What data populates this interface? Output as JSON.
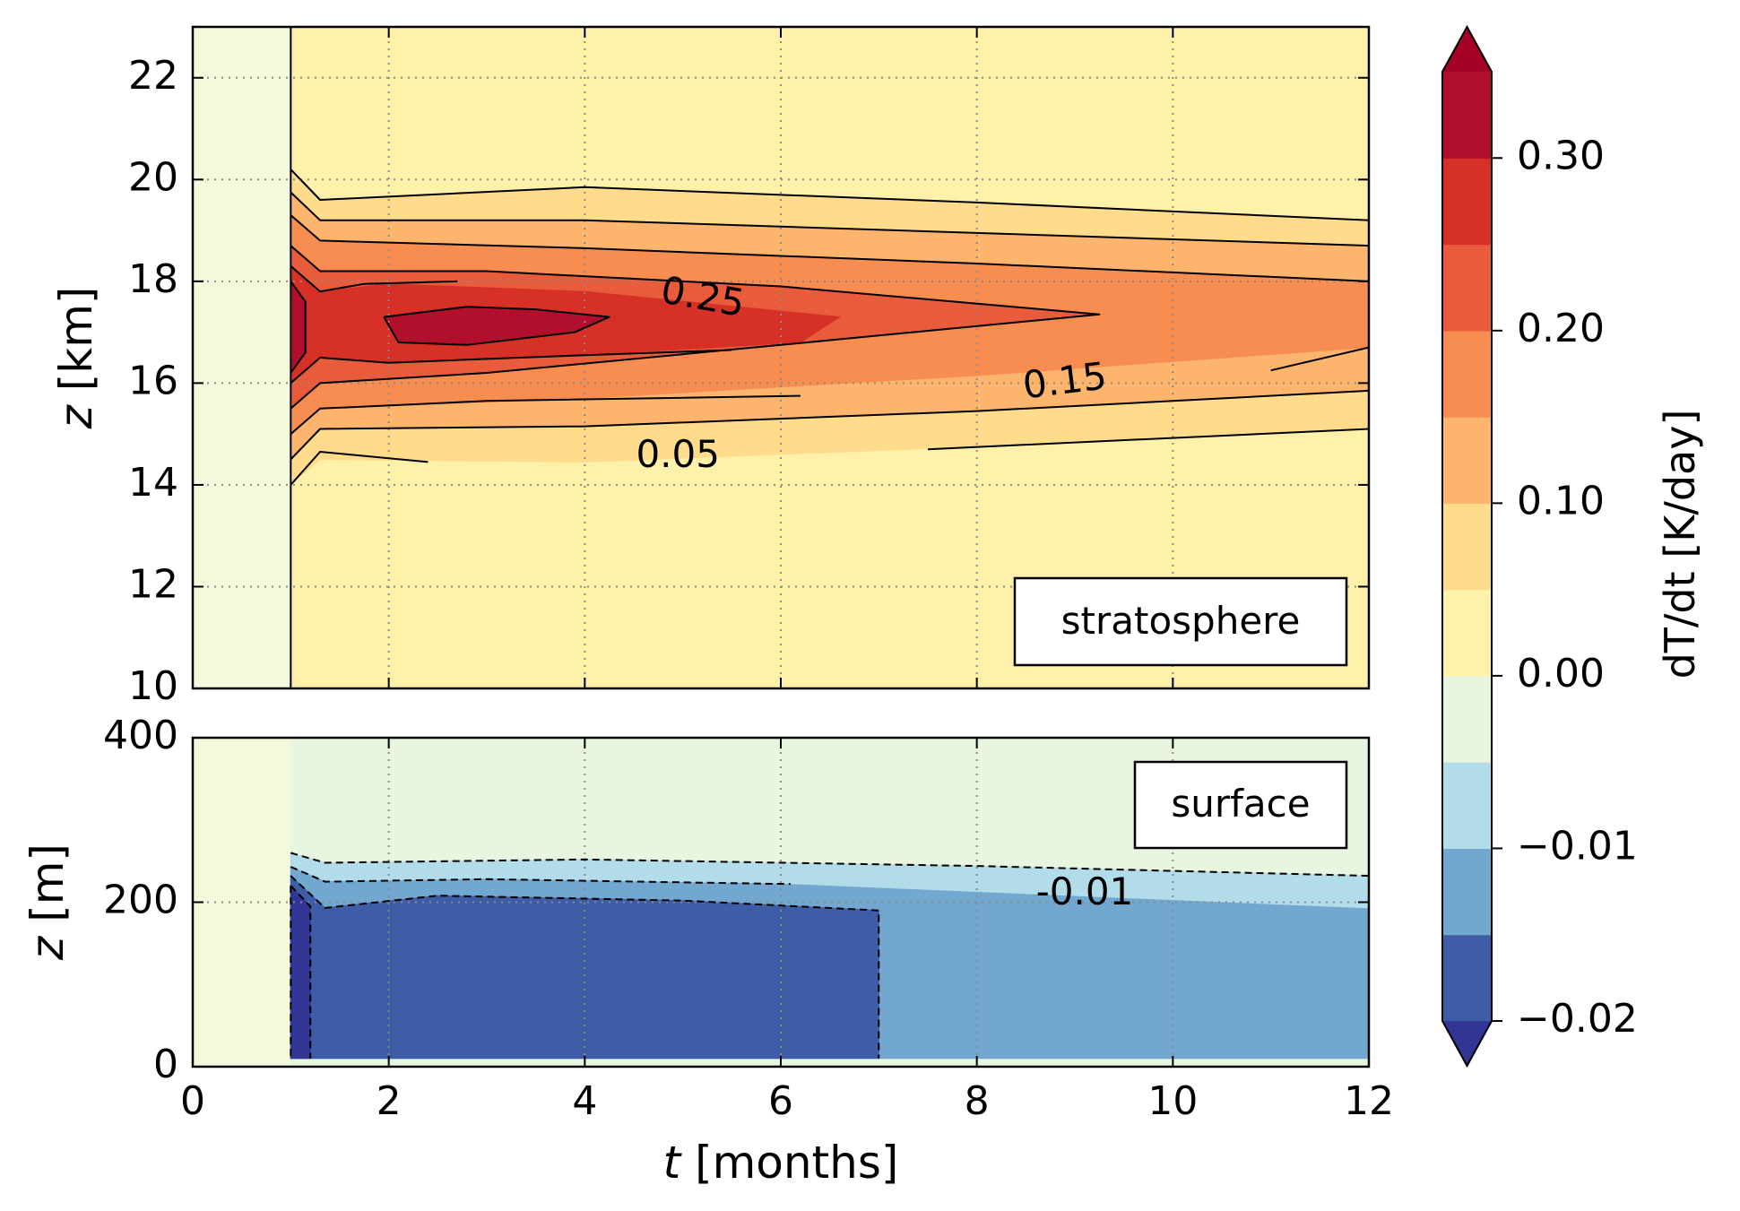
{
  "chart_data": {
    "type": "heatmap",
    "colorbar": {
      "label": "dT/dt [K/day]",
      "levels": [
        -0.02,
        -0.015,
        -0.01,
        -0.005,
        0.0,
        0.05,
        0.1,
        0.15,
        0.2,
        0.25,
        0.3,
        0.35
      ],
      "colors": [
        "#3f5ca7",
        "#72a8cf",
        "#b3dceb",
        "#e8f6e0",
        "#fff1aa",
        "#fedc8b",
        "#fdb46d",
        "#f88d52",
        "#e85b3b",
        "#d73127",
        "#b10f2b"
      ],
      "under_color": "#313695",
      "over_color": "#a50026",
      "ticks": [
        -0.02,
        -0.01,
        0.0,
        0.1,
        0.2,
        0.3
      ],
      "tick_labels": [
        "−0.02",
        "−0.01",
        "0.00",
        "0.10",
        "0.20",
        "0.30"
      ]
    },
    "xaxis": {
      "label_italic": "t",
      "label_rest": " [months]",
      "range": [
        0,
        12
      ],
      "ticks": [
        0,
        2,
        4,
        6,
        8,
        10,
        12
      ],
      "tick_labels": [
        "0",
        "2",
        "4",
        "6",
        "8",
        "10",
        "12"
      ]
    },
    "panels": [
      {
        "name": "stratosphere",
        "box_label": "stratosphere",
        "ylabel_italic": "z",
        "ylabel_rest": " [km]",
        "ylim": [
          10,
          23
        ],
        "yticks": [
          10,
          12,
          14,
          16,
          18,
          20,
          22
        ],
        "ytick_labels": [
          "10",
          "12",
          "14",
          "16",
          "18",
          "20",
          "22"
        ],
        "grid": true,
        "onset_month": 1.0,
        "pre_onset_color": "#f4f9dc",
        "background_color": "#fff1aa",
        "filled_regions": [
          {
            "level": 0.05,
            "color": "#fedc8b",
            "x": [
              1.0,
              1.3,
              4,
              8,
              12,
              12,
              8,
              4,
              1.3,
              1.0
            ],
            "y": [
              20.2,
              19.6,
              19.85,
              19.55,
              19.2,
              15.1,
              14.75,
              14.45,
              14.5,
              14.0
            ]
          },
          {
            "level": 0.1,
            "color": "#fdb46d",
            "x": [
              1.0,
              1.3,
              4,
              8,
              12,
              12,
              8,
              4,
              1.3,
              1.0
            ],
            "y": [
              19.75,
              19.2,
              19.2,
              18.95,
              18.7,
              15.85,
              15.45,
              15.15,
              15.1,
              14.5
            ]
          },
          {
            "level": 0.15,
            "color": "#f88d52",
            "x": [
              1.0,
              1.3,
              4,
              8,
              12,
              12,
              8,
              4,
              1.3,
              1.0
            ],
            "y": [
              19.3,
              18.8,
              18.65,
              18.35,
              18.0,
              16.7,
              16.15,
              15.7,
              15.5,
              15.0
            ]
          },
          {
            "level": 0.2,
            "color": "#e85b3b",
            "x": [
              1.0,
              1.3,
              3,
              6,
              9.25,
              6,
              3,
              1.3,
              1.0
            ],
            "y": [
              18.7,
              18.2,
              18.2,
              17.9,
              17.35,
              16.75,
              16.2,
              16.0,
              15.5
            ]
          },
          {
            "level": 0.25,
            "color": "#d73127",
            "x": [
              1.0,
              1.3,
              2,
              4,
              6.6,
              6.2,
              4,
              2,
              1.3,
              1.0
            ],
            "y": [
              18.3,
              17.8,
              17.95,
              17.8,
              17.3,
              16.8,
              16.55,
              16.4,
              16.5,
              16.0
            ]
          },
          {
            "level": 0.3,
            "color": "#b10f2b",
            "x": [
              1.0,
              1.15,
              1.15,
              1.0
            ],
            "y": [
              18.0,
              17.6,
              16.6,
              16.2
            ]
          },
          {
            "level": 0.3,
            "color": "#b10f2b",
            "x": [
              1.95,
              2.8,
              3.5,
              4.25,
              3.9,
              2.8,
              2.1
            ],
            "y": [
              17.3,
              17.5,
              17.45,
              17.3,
              17.0,
              16.75,
              16.8
            ]
          }
        ],
        "contours": [
          {
            "level": 0.05,
            "x": [
              1.0,
              1.3,
              4,
              8,
              12
            ],
            "y": [
              20.2,
              19.6,
              19.85,
              19.55,
              19.2
            ]
          },
          {
            "level": 0.05,
            "x": [
              1.0,
              1.3,
              2.4
            ],
            "y": [
              14.0,
              14.65,
              14.45
            ]
          },
          {
            "level": 0.05,
            "x": [
              7.5,
              12
            ],
            "y": [
              14.7,
              15.1
            ]
          },
          {
            "level": 0.1,
            "x": [
              1.0,
              1.3,
              4,
              8,
              12
            ],
            "y": [
              19.75,
              19.2,
              19.2,
              18.95,
              18.7
            ]
          },
          {
            "level": 0.1,
            "x": [
              1.0,
              1.3,
              4,
              8,
              12
            ],
            "y": [
              14.5,
              15.1,
              15.15,
              15.45,
              15.85
            ]
          },
          {
            "level": 0.15,
            "x": [
              1.0,
              1.3,
              4,
              8,
              12
            ],
            "y": [
              19.3,
              18.8,
              18.65,
              18.35,
              18.0
            ]
          },
          {
            "level": 0.15,
            "x": [
              1.0,
              1.3,
              3,
              6.2
            ],
            "y": [
              15.0,
              15.5,
              15.65,
              15.75
            ]
          },
          {
            "level": 0.15,
            "x": [
              11.0,
              12
            ],
            "y": [
              16.25,
              16.7
            ]
          },
          {
            "level": 0.2,
            "x": [
              1.0,
              1.3,
              3,
              6,
              9.25,
              6,
              3,
              1.3,
              1.0
            ],
            "y": [
              18.7,
              18.2,
              18.2,
              17.9,
              17.35,
              16.75,
              16.2,
              16.0,
              15.5
            ]
          },
          {
            "level": 0.25,
            "x": [
              1.0,
              1.3,
              1.75,
              2.7
            ],
            "y": [
              18.3,
              17.8,
              17.95,
              18.0
            ]
          },
          {
            "level": 0.25,
            "x": [
              1.0,
              1.3,
              2,
              4,
              5.5
            ],
            "y": [
              16.0,
              16.5,
              16.4,
              16.55,
              16.65
            ]
          },
          {
            "level": 0.3,
            "x": [
              1.0,
              1.15,
              1.15,
              1.0
            ],
            "y": [
              18.0,
              17.6,
              16.6,
              16.2
            ]
          },
          {
            "level": 0.3,
            "x": [
              1.95,
              2.8,
              3.5,
              4.25,
              3.9,
              2.8,
              2.1,
              1.95
            ],
            "y": [
              17.3,
              17.5,
              17.45,
              17.3,
              17.0,
              16.75,
              16.8,
              17.3
            ]
          }
        ],
        "contour_labels": [
          {
            "text": "0.25",
            "x": 5.2,
            "y": 17.65,
            "rotation": 10
          },
          {
            "text": "0.15",
            "x": 8.9,
            "y": 16.0,
            "rotation": -7
          },
          {
            "text": "0.05",
            "x": 4.95,
            "y": 14.55,
            "rotation": 0
          }
        ]
      },
      {
        "name": "surface",
        "box_label": "surface",
        "ylabel_italic": "z",
        "ylabel_rest": " [m]",
        "ylim": [
          0,
          400
        ],
        "yticks": [
          0,
          200,
          400
        ],
        "ytick_labels": [
          "0",
          "200",
          "400"
        ],
        "grid": true,
        "onset_month": 1.0,
        "pre_onset_color": "#f4f9dc",
        "background_color": "#e8f6e0",
        "bottom_strip_color": "#e8f6e0",
        "filled_regions": [
          {
            "level": -0.005,
            "color": "#b3dceb",
            "x": [
              1.0,
              1.35,
              4,
              8,
              12,
              12,
              1.0
            ],
            "y": [
              260,
              248,
              252,
              244,
              232,
              10,
              10
            ]
          },
          {
            "level": -0.01,
            "color": "#72a8cf",
            "x": [
              1.0,
              1.35,
              3,
              6,
              8,
              12,
              12,
              1.0
            ],
            "y": [
              243,
              225,
              228,
              222,
              212,
              192,
              10,
              10
            ]
          },
          {
            "level": -0.015,
            "color": "#3f5ca7",
            "x": [
              1.0,
              1.35,
              2.5,
              5,
              7.0,
              7.0,
              1.0
            ],
            "y": [
              232,
              193,
              208,
              202,
              190,
              10,
              10
            ]
          },
          {
            "level": -0.02,
            "color": "#313695",
            "x": [
              1.0,
              1.2,
              1.2,
              1.0
            ],
            "y": [
              220,
              195,
              10,
              10
            ]
          }
        ],
        "contours": [
          {
            "level": -0.005,
            "x": [
              1.0,
              1.35,
              4,
              8,
              12
            ],
            "y": [
              260,
              248,
              252,
              244,
              232
            ]
          },
          {
            "level": -0.01,
            "x": [
              1.0,
              1.35,
              3,
              6.1
            ],
            "y": [
              243,
              225,
              228,
              222
            ]
          },
          {
            "level": -0.015,
            "x": [
              1.0,
              1.35,
              2.5,
              5,
              7.0,
              7.0
            ],
            "y": [
              232,
              193,
              208,
              202,
              190,
              10
            ]
          },
          {
            "level": -0.02,
            "x": [
              1.0,
              1.2,
              1.2
            ],
            "y": [
              220,
              195,
              10
            ]
          },
          {
            "level": -0.02,
            "x": [
              1.0,
              1.0
            ],
            "y": [
              220,
              10
            ]
          }
        ],
        "contour_labels": [
          {
            "text": "-0.01",
            "x": 9.1,
            "y": 210,
            "rotation": 0
          }
        ]
      }
    ]
  }
}
